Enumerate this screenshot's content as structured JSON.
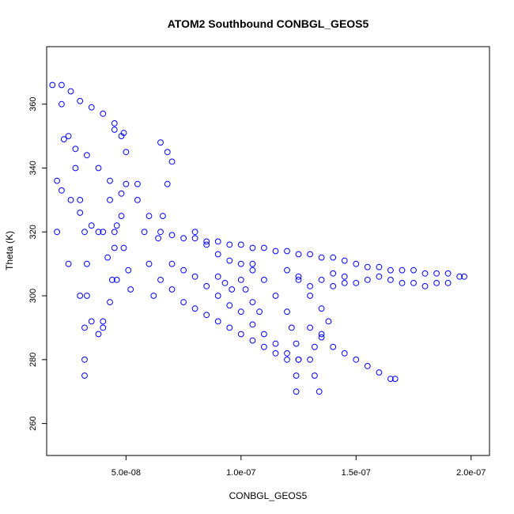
{
  "chart_data": {
    "type": "scatter",
    "title": "ATOM2 Southbound CONBGL_GEOS5",
    "xlabel": "CONBGL_GEOS5",
    "ylabel": "Theta (K)",
    "xlim": [
      1.55e-08,
      2.08e-07
    ],
    "ylim": [
      250,
      378
    ],
    "x_ticks": [
      5e-08,
      1e-07,
      1.5e-07,
      2e-07
    ],
    "x_tick_labels": [
      "5.0e-08",
      "1.0e-07",
      "1.5e-07",
      "2.0e-07"
    ],
    "y_ticks": [
      260,
      280,
      300,
      320,
      340,
      360
    ],
    "y_tick_labels": [
      "260",
      "280",
      "300",
      "320",
      "340",
      "360"
    ],
    "grid": false,
    "marker": "open-circle",
    "color": "#0000ff",
    "series": [
      {
        "points": [
          [
            1.8e-08,
            366
          ],
          [
            2.2e-08,
            366
          ],
          [
            2.6e-08,
            364
          ],
          [
            3e-08,
            361
          ],
          [
            3.5e-08,
            359
          ],
          [
            4e-08,
            357
          ],
          [
            4.5e-08,
            354
          ],
          [
            4.9e-08,
            351
          ],
          [
            2.2e-08,
            360
          ],
          [
            2.5e-08,
            350
          ],
          [
            2.8e-08,
            340
          ],
          [
            3e-08,
            330
          ],
          [
            3.2e-08,
            320
          ],
          [
            3.3e-08,
            310
          ],
          [
            3.3e-08,
            300
          ],
          [
            3.2e-08,
            290
          ],
          [
            3.2e-08,
            280
          ],
          [
            3.2e-08,
            275
          ],
          [
            2e-08,
            336
          ],
          [
            2.2e-08,
            333
          ],
          [
            2.6e-08,
            330
          ],
          [
            3e-08,
            326
          ],
          [
            3.5e-08,
            322
          ],
          [
            4e-08,
            320
          ],
          [
            4.5e-08,
            320
          ],
          [
            2e-08,
            320
          ],
          [
            2.5e-08,
            310
          ],
          [
            3e-08,
            300
          ],
          [
            3.5e-08,
            292
          ],
          [
            4e-08,
            290
          ],
          [
            2.3e-08,
            349
          ],
          [
            2.8e-08,
            346
          ],
          [
            3.3e-08,
            344
          ],
          [
            3.8e-08,
            340
          ],
          [
            4.3e-08,
            336
          ],
          [
            4.8e-08,
            332
          ],
          [
            4.5e-08,
            352
          ],
          [
            4.8e-08,
            350
          ],
          [
            5e-08,
            345
          ],
          [
            5e-08,
            335
          ],
          [
            4.8e-08,
            325
          ],
          [
            4.5e-08,
            315
          ],
          [
            4.6e-08,
            305
          ],
          [
            4.3e-08,
            330
          ],
          [
            4.6e-08,
            322
          ],
          [
            4.9e-08,
            315
          ],
          [
            5.1e-08,
            308
          ],
          [
            5.2e-08,
            302
          ],
          [
            3.8e-08,
            320
          ],
          [
            4.2e-08,
            312
          ],
          [
            4.4e-08,
            305
          ],
          [
            4.3e-08,
            298
          ],
          [
            4e-08,
            292
          ],
          [
            3.8e-08,
            288
          ],
          [
            5.5e-08,
            335
          ],
          [
            5.8e-08,
            320
          ],
          [
            6e-08,
            310
          ],
          [
            6.2e-08,
            300
          ],
          [
            6.5e-08,
            348
          ],
          [
            6.8e-08,
            345
          ],
          [
            7e-08,
            342
          ],
          [
            6.8e-08,
            335
          ],
          [
            6.6e-08,
            325
          ],
          [
            6.4e-08,
            318
          ],
          [
            5.5e-08,
            330
          ],
          [
            6e-08,
            325
          ],
          [
            6.5e-08,
            320
          ],
          [
            7e-08,
            319
          ],
          [
            7.5e-08,
            318
          ],
          [
            8e-08,
            318
          ],
          [
            8.5e-08,
            317
          ],
          [
            9e-08,
            317
          ],
          [
            9.5e-08,
            316
          ],
          [
            1e-07,
            316
          ],
          [
            1.05e-07,
            315
          ],
          [
            1.1e-07,
            315
          ],
          [
            1.15e-07,
            314
          ],
          [
            1.2e-07,
            314
          ],
          [
            1.25e-07,
            313
          ],
          [
            1.3e-07,
            313
          ],
          [
            1.35e-07,
            312
          ],
          [
            1.4e-07,
            312
          ],
          [
            1.45e-07,
            311
          ],
          [
            1.5e-07,
            310
          ],
          [
            1.55e-07,
            309
          ],
          [
            1.6e-07,
            309
          ],
          [
            1.65e-07,
            308
          ],
          [
            1.7e-07,
            308
          ],
          [
            1.75e-07,
            308
          ],
          [
            1.8e-07,
            307
          ],
          [
            1.85e-07,
            307
          ],
          [
            1.9e-07,
            307
          ],
          [
            1.95e-07,
            306
          ],
          [
            1.97e-07,
            306
          ],
          [
            1.9e-07,
            304
          ],
          [
            1.85e-07,
            304
          ],
          [
            1.8e-07,
            303
          ],
          [
            1.75e-07,
            304
          ],
          [
            1.7e-07,
            304
          ],
          [
            1.65e-07,
            305
          ],
          [
            1.6e-07,
            306
          ],
          [
            1.55e-07,
            305
          ],
          [
            1.5e-07,
            304
          ],
          [
            1.45e-07,
            304
          ],
          [
            1.4e-07,
            303
          ],
          [
            8e-08,
            320
          ],
          [
            8.5e-08,
            316
          ],
          [
            9e-08,
            313
          ],
          [
            9.5e-08,
            311
          ],
          [
            1e-07,
            310
          ],
          [
            1.05e-07,
            308
          ],
          [
            7e-08,
            310
          ],
          [
            7.5e-08,
            308
          ],
          [
            8e-08,
            306
          ],
          [
            8.5e-08,
            303
          ],
          [
            9e-08,
            300
          ],
          [
            9.5e-08,
            297
          ],
          [
            1e-07,
            295
          ],
          [
            1.05e-07,
            291
          ],
          [
            1.1e-07,
            288
          ],
          [
            1.15e-07,
            285
          ],
          [
            1.2e-07,
            282
          ],
          [
            1.25e-07,
            280
          ],
          [
            6.5e-08,
            305
          ],
          [
            7e-08,
            302
          ],
          [
            7.5e-08,
            298
          ],
          [
            8e-08,
            296
          ],
          [
            8.5e-08,
            294
          ],
          [
            9e-08,
            292
          ],
          [
            9.5e-08,
            290
          ],
          [
            1e-07,
            288
          ],
          [
            1.05e-07,
            286
          ],
          [
            1.1e-07,
            284
          ],
          [
            1.15e-07,
            282
          ],
          [
            1.2e-07,
            280
          ],
          [
            1.05e-07,
            310
          ],
          [
            1.1e-07,
            305
          ],
          [
            1.15e-07,
            300
          ],
          [
            1.2e-07,
            295
          ],
          [
            1.22e-07,
            290
          ],
          [
            1.24e-07,
            285
          ],
          [
            1.25e-07,
            280
          ],
          [
            1.24e-07,
            275
          ],
          [
            1.24e-07,
            270
          ],
          [
            1.3e-07,
            290
          ],
          [
            1.35e-07,
            287
          ],
          [
            1.4e-07,
            284
          ],
          [
            1.45e-07,
            282
          ],
          [
            1.5e-07,
            280
          ],
          [
            1.55e-07,
            278
          ],
          [
            1.6e-07,
            276
          ],
          [
            1.65e-07,
            274
          ],
          [
            1.67e-07,
            274
          ],
          [
            1.25e-07,
            305
          ],
          [
            1.3e-07,
            300
          ],
          [
            1.35e-07,
            296
          ],
          [
            1.38e-07,
            292
          ],
          [
            1.35e-07,
            288
          ],
          [
            1.32e-07,
            284
          ],
          [
            1.3e-07,
            280
          ],
          [
            1.32e-07,
            275
          ],
          [
            1.34e-07,
            270
          ],
          [
            1e-07,
            305
          ],
          [
            1.02e-07,
            302
          ],
          [
            1.05e-07,
            298
          ],
          [
            1.08e-07,
            295
          ],
          [
            9e-08,
            306
          ],
          [
            9.3e-08,
            304
          ],
          [
            9.6e-08,
            302
          ],
          [
            1.2e-07,
            308
          ],
          [
            1.25e-07,
            306
          ],
          [
            1.3e-07,
            303
          ],
          [
            1.35e-07,
            305
          ],
          [
            1.4e-07,
            307
          ],
          [
            1.45e-07,
            306
          ]
        ]
      }
    ]
  }
}
